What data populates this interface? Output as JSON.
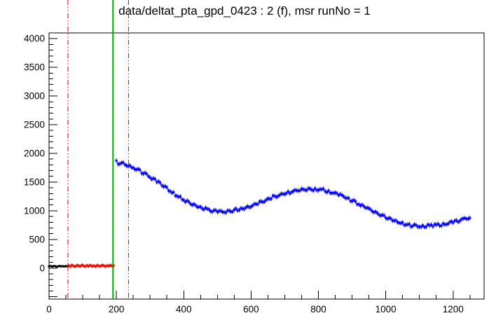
{
  "page": {
    "background": "#ffffff"
  },
  "chart_data": {
    "type": "scatter",
    "title": "data/deltat_pta_gpd_0423 : 2 (f), msr runNo = 1",
    "xlabel": "",
    "ylabel": "",
    "xlim": [
      0,
      1292
    ],
    "ylim": [
      -540,
      4100
    ],
    "grid": false,
    "legend": null,
    "x_ticks": {
      "major_step": 200,
      "minor_step": 50,
      "labels": [
        0,
        200,
        400,
        600,
        800,
        1000,
        1200
      ]
    },
    "y_ticks": {
      "major_step": 500,
      "minor_step": 100,
      "labels": [
        0,
        500,
        1000,
        1500,
        2000,
        2500,
        3000,
        3500,
        4000
      ]
    },
    "colors": {
      "frame": "#000000",
      "background_marker": "#ff0000",
      "prompt_marker": "#000000",
      "data_marker": "#0000ff",
      "range_line_red": "#e60000",
      "t0_line_green": "#00aa00"
    },
    "vlines": [
      {
        "name": "bkg-range-start-line",
        "x": 56,
        "color": "#e60000",
        "style": "dash-dot",
        "width": 1
      },
      {
        "name": "t0-line",
        "x": 190,
        "color": "#00aa00",
        "style": "solid",
        "width": 2
      },
      {
        "name": "bkg-range-end-line",
        "x": 236,
        "color": "#e60000",
        "style": "dash-dot",
        "width": 1
      }
    ],
    "series": [
      {
        "name": "prompt-region",
        "color": "#000000",
        "marker": "square",
        "err": 10,
        "jitter": 8,
        "points": [
          [
            0,
            30
          ],
          [
            5,
            36
          ],
          [
            10,
            28
          ],
          [
            15,
            38
          ],
          [
            20,
            30
          ],
          [
            25,
            26
          ],
          [
            30,
            38
          ],
          [
            35,
            30
          ],
          [
            40,
            34
          ],
          [
            45,
            28
          ],
          [
            50,
            36
          ],
          [
            55,
            31
          ]
        ]
      },
      {
        "name": "background-region",
        "color": "#ff0000",
        "marker": "square",
        "err": 30,
        "jitter": 12,
        "points": [
          [
            58,
            45
          ],
          [
            63,
            30
          ],
          [
            68,
            52
          ],
          [
            73,
            36
          ],
          [
            78,
            28
          ],
          [
            83,
            48
          ],
          [
            88,
            40
          ],
          [
            93,
            33
          ],
          [
            98,
            55
          ],
          [
            103,
            38
          ],
          [
            108,
            30
          ],
          [
            113,
            46
          ],
          [
            118,
            36
          ],
          [
            123,
            50
          ],
          [
            128,
            32
          ],
          [
            133,
            42
          ],
          [
            138,
            28
          ],
          [
            143,
            48
          ],
          [
            148,
            38
          ],
          [
            153,
            33
          ],
          [
            158,
            52
          ],
          [
            163,
            40
          ],
          [
            168,
            30
          ],
          [
            173,
            45
          ],
          [
            178,
            36
          ],
          [
            183,
            50
          ],
          [
            188,
            33
          ],
          [
            192,
            42
          ]
        ]
      },
      {
        "name": "decay-histogram",
        "color": "#0000ff",
        "marker": "square",
        "err": 40,
        "jitter": 30,
        "points": [
          [
            200,
            1872
          ],
          [
            210,
            1815
          ],
          [
            220,
            1842
          ],
          [
            230,
            1788
          ],
          [
            240,
            1790
          ],
          [
            250,
            1748
          ],
          [
            260,
            1718
          ],
          [
            270,
            1712
          ],
          [
            280,
            1645
          ],
          [
            290,
            1642
          ],
          [
            300,
            1580
          ],
          [
            310,
            1565
          ],
          [
            320,
            1498
          ],
          [
            330,
            1488
          ],
          [
            340,
            1420
          ],
          [
            350,
            1405
          ],
          [
            360,
            1338
          ],
          [
            370,
            1322
          ],
          [
            380,
            1258
          ],
          [
            390,
            1248
          ],
          [
            400,
            1185
          ],
          [
            410,
            1177
          ],
          [
            420,
            1120
          ],
          [
            430,
            1116
          ],
          [
            440,
            1066
          ],
          [
            450,
            1068
          ],
          [
            460,
            1022
          ],
          [
            470,
            1032
          ],
          [
            480,
            992
          ],
          [
            490,
            1008
          ],
          [
            500,
            978
          ],
          [
            510,
            998
          ],
          [
            520,
            974
          ],
          [
            530,
            1002
          ],
          [
            540,
            984
          ],
          [
            550,
            1018
          ],
          [
            560,
            1004
          ],
          [
            570,
            1044
          ],
          [
            580,
            1034
          ],
          [
            590,
            1078
          ],
          [
            600,
            1072
          ],
          [
            610,
            1120
          ],
          [
            620,
            1115
          ],
          [
            630,
            1164
          ],
          [
            640,
            1160
          ],
          [
            650,
            1212
          ],
          [
            660,
            1208
          ],
          [
            670,
            1256
          ],
          [
            680,
            1252
          ],
          [
            690,
            1298
          ],
          [
            700,
            1290
          ],
          [
            710,
            1335
          ],
          [
            720,
            1324
          ],
          [
            730,
            1362
          ],
          [
            740,
            1348
          ],
          [
            750,
            1382
          ],
          [
            760,
            1363
          ],
          [
            770,
            1390
          ],
          [
            780,
            1366
          ],
          [
            790,
            1388
          ],
          [
            800,
            1358
          ],
          [
            810,
            1374
          ],
          [
            820,
            1338
          ],
          [
            830,
            1350
          ],
          [
            840,
            1309
          ],
          [
            850,
            1315
          ],
          [
            860,
            1270
          ],
          [
            870,
            1271
          ],
          [
            880,
            1222
          ],
          [
            890,
            1220
          ],
          [
            900,
            1168
          ],
          [
            910,
            1164
          ],
          [
            920,
            1110
          ],
          [
            930,
            1104
          ],
          [
            940,
            1049
          ],
          [
            950,
            1043
          ],
          [
            960,
            989
          ],
          [
            970,
            983
          ],
          [
            980,
            930
          ],
          [
            990,
            927
          ],
          [
            1000,
            876
          ],
          [
            1010,
            875
          ],
          [
            1020,
            828
          ],
          [
            1030,
            831
          ],
          [
            1040,
            788
          ],
          [
            1050,
            795
          ],
          [
            1060,
            756
          ],
          [
            1070,
            768
          ],
          [
            1080,
            734
          ],
          [
            1090,
            750
          ],
          [
            1100,
            721
          ],
          [
            1110,
            743
          ],
          [
            1120,
            719
          ],
          [
            1130,
            745
          ],
          [
            1140,
            726
          ],
          [
            1150,
            756
          ],
          [
            1160,
            741
          ],
          [
            1170,
            775
          ],
          [
            1180,
            763
          ],
          [
            1190,
            801
          ],
          [
            1200,
            792
          ],
          [
            1210,
            831
          ],
          [
            1220,
            824
          ],
          [
            1230,
            865
          ],
          [
            1240,
            858
          ],
          [
            1250,
            875
          ]
        ]
      }
    ]
  }
}
